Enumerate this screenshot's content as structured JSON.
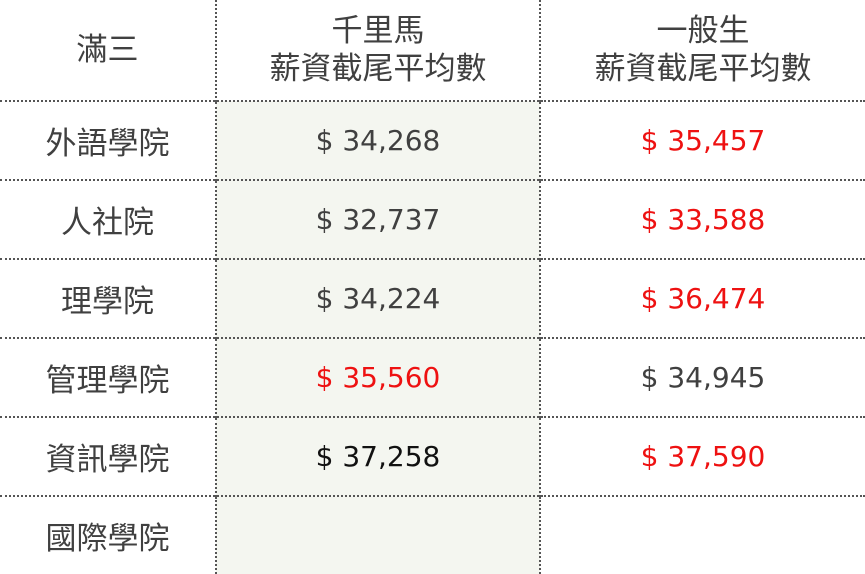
{
  "header": {
    "corner": "滿三",
    "col1_line1": "千里馬",
    "col1_line2": "薪資截尾平均數",
    "col2_line1": "一般生",
    "col2_line2": "薪資截尾平均數"
  },
  "rows": [
    {
      "label": "外語學院",
      "v1": "$ 34,268",
      "v2": "$ 35,457"
    },
    {
      "label": "人社院",
      "v1": "$ 32,737",
      "v2": "$ 33,588"
    },
    {
      "label": "理學院",
      "v1": "$ 34,224",
      "v2": "$ 36,474"
    },
    {
      "label": "管理學院",
      "v1": "$ 35,560",
      "v2": "$ 34,945"
    },
    {
      "label": "資訊學院",
      "v1": "$ 37,258",
      "v2": "$ 37,590"
    },
    {
      "label": "國際學院",
      "v1": "",
      "v2": ""
    }
  ],
  "colors": {
    "highlight_red": "#ee1111",
    "text_grey": "#404040",
    "shade": "#f4f6f0"
  }
}
